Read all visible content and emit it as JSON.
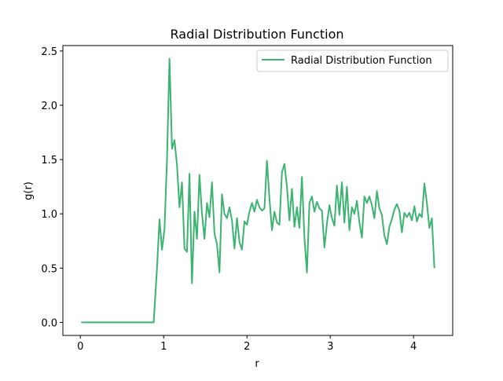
{
  "chart_data": {
    "type": "line",
    "title": "Radial Distribution Function",
    "xlabel": "r",
    "ylabel": "g(r)",
    "xlim": [
      -0.21,
      4.47
    ],
    "ylim": [
      -0.12,
      2.55
    ],
    "xticks": [
      0,
      1,
      2,
      3,
      4
    ],
    "xtick_labels": [
      "0",
      "1",
      "2",
      "3",
      "4"
    ],
    "yticks": [
      0.0,
      0.5,
      1.0,
      1.5,
      2.0,
      2.5
    ],
    "ytick_labels": [
      "0.0",
      "0.5",
      "1.0",
      "1.5",
      "2.0",
      "2.5"
    ],
    "grid": false,
    "legend": {
      "placement": "top-right",
      "entries": [
        "Radial Distribution Function"
      ]
    },
    "series": [
      {
        "name": "Radial Distribution Function",
        "color": "#3cb371",
        "x": [
          0.01,
          0.88,
          0.92,
          0.95,
          0.98,
          1.01,
          1.04,
          1.07,
          1.1,
          1.13,
          1.16,
          1.19,
          1.22,
          1.25,
          1.28,
          1.31,
          1.34,
          1.37,
          1.4,
          1.43,
          1.46,
          1.49,
          1.52,
          1.55,
          1.58,
          1.61,
          1.64,
          1.67,
          1.7,
          1.73,
          1.76,
          1.79,
          1.82,
          1.85,
          1.88,
          1.91,
          1.94,
          1.97,
          2.0,
          2.03,
          2.06,
          2.09,
          2.12,
          2.15,
          2.18,
          2.21,
          2.24,
          2.27,
          2.3,
          2.33,
          2.36,
          2.39,
          2.42,
          2.45,
          2.48,
          2.51,
          2.54,
          2.57,
          2.6,
          2.63,
          2.66,
          2.69,
          2.72,
          2.75,
          2.78,
          2.81,
          2.84,
          2.87,
          2.9,
          2.93,
          2.96,
          2.99,
          3.02,
          3.05,
          3.08,
          3.11,
          3.14,
          3.17,
          3.2,
          3.23,
          3.26,
          3.29,
          3.32,
          3.35,
          3.38,
          3.41,
          3.44,
          3.47,
          3.5,
          3.53,
          3.56,
          3.59,
          3.62,
          3.65,
          3.68,
          3.71,
          3.74,
          3.77,
          3.8,
          3.83,
          3.86,
          3.89,
          3.92,
          3.95,
          3.98,
          4.01,
          4.04,
          4.07,
          4.1,
          4.13,
          4.16,
          4.19,
          4.22,
          4.25
        ],
        "y": [
          0.0,
          0.0,
          0.5,
          0.95,
          0.67,
          0.86,
          1.5,
          2.43,
          1.6,
          1.68,
          1.45,
          1.06,
          1.29,
          0.68,
          0.65,
          1.37,
          0.36,
          1.02,
          0.77,
          1.36,
          1.0,
          0.77,
          1.1,
          0.97,
          1.29,
          0.82,
          0.72,
          0.46,
          1.18,
          1.0,
          0.96,
          1.06,
          0.94,
          0.68,
          0.96,
          0.74,
          0.67,
          0.93,
          0.9,
          1.02,
          1.1,
          1.02,
          1.13,
          1.06,
          1.03,
          1.05,
          1.49,
          1.14,
          0.85,
          1.02,
          0.92,
          0.9,
          1.38,
          1.46,
          1.25,
          0.94,
          1.23,
          0.88,
          1.06,
          0.87,
          1.34,
          0.78,
          0.46,
          1.1,
          1.16,
          1.02,
          1.11,
          1.05,
          1.03,
          0.69,
          0.91,
          1.08,
          0.96,
          0.89,
          1.26,
          0.99,
          1.29,
          0.92,
          1.25,
          0.85,
          1.06,
          1.0,
          1.12,
          0.92,
          0.78,
          1.16,
          1.1,
          1.16,
          1.08,
          0.96,
          1.21,
          1.05,
          0.99,
          0.8,
          0.72,
          0.88,
          0.95,
          1.04,
          1.09,
          1.03,
          0.83,
          1.01,
          0.97,
          1.01,
          0.94,
          1.07,
          0.93,
          1.0,
          0.97,
          1.28,
          1.1,
          0.87,
          0.96,
          0.5
        ]
      }
    ]
  }
}
